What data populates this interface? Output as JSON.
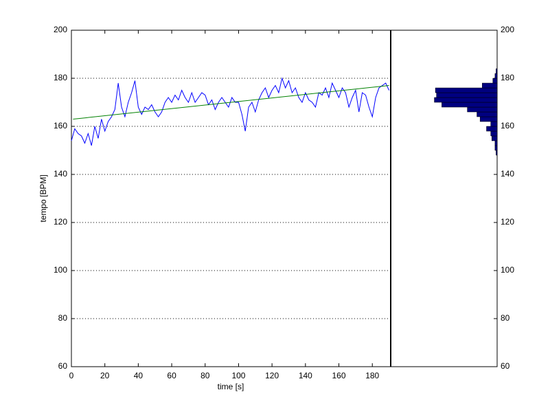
{
  "chart_data": [
    {
      "type": "line",
      "xlabel": "time [s]",
      "ylabel": "tempo [BPM]",
      "x": [
        0,
        2,
        4,
        6,
        8,
        10,
        12,
        14,
        16,
        18,
        20,
        22,
        24,
        26,
        28,
        30,
        32,
        34,
        36,
        38,
        40,
        42,
        44,
        46,
        48,
        50,
        52,
        54,
        56,
        58,
        60,
        62,
        64,
        66,
        68,
        70,
        72,
        74,
        76,
        78,
        80,
        82,
        84,
        86,
        88,
        90,
        92,
        94,
        96,
        98,
        100,
        102,
        104,
        106,
        108,
        110,
        112,
        114,
        116,
        118,
        120,
        122,
        124,
        126,
        128,
        130,
        132,
        134,
        136,
        138,
        140,
        142,
        144,
        146,
        148,
        150,
        152,
        154,
        156,
        158,
        160,
        162,
        164,
        166,
        168,
        170,
        172,
        174,
        176,
        178,
        180,
        182,
        184,
        186,
        188,
        190
      ],
      "series": [
        {
          "color": "#0000ff",
          "values": [
            154,
            159,
            157,
            156,
            153,
            157,
            152,
            160,
            155,
            163,
            158,
            162,
            164,
            167,
            178,
            168,
            164,
            170,
            174,
            179,
            168,
            165,
            168,
            167,
            169,
            166,
            164,
            166,
            170,
            172,
            170,
            173,
            171,
            175,
            172,
            170,
            174,
            170,
            172,
            174,
            173,
            169,
            171,
            167,
            170,
            172,
            170,
            168,
            172,
            170,
            170,
            165,
            158,
            168,
            170,
            166,
            171,
            174,
            176,
            172,
            175,
            177,
            174,
            180,
            176,
            179,
            174,
            176,
            172,
            170,
            174,
            171,
            170,
            168,
            174,
            173,
            176,
            172,
            178,
            175,
            172,
            176,
            174,
            168,
            172,
            175,
            166,
            174,
            173,
            168,
            164,
            172,
            176,
            177,
            178,
            175
          ]
        },
        {
          "color": "#008000",
          "x": [
            1,
            190
          ],
          "values": [
            163,
            177
          ]
        }
      ],
      "xlim": [
        0,
        191
      ],
      "ylim": [
        60,
        200
      ],
      "xticks": [
        0,
        20,
        40,
        60,
        80,
        100,
        120,
        140,
        160,
        180
      ],
      "yticks": [
        60,
        80,
        100,
        120,
        140,
        160,
        180,
        200
      ],
      "grid": true
    },
    {
      "type": "histogram",
      "orientation": "horizontal",
      "color": "#000080",
      "bins": [
        148,
        150,
        152,
        154,
        156,
        158,
        160,
        162,
        164,
        166,
        168,
        170,
        172,
        174,
        176,
        178,
        180,
        182,
        184
      ],
      "counts": [
        1,
        2,
        2,
        5,
        6,
        10,
        6,
        16,
        19,
        28,
        52,
        59,
        57,
        58,
        14,
        4,
        2,
        1
      ],
      "xlim": [
        0,
        100
      ],
      "ylim": [
        60,
        200
      ],
      "yticks": [
        60,
        80,
        100,
        120,
        140,
        160,
        180,
        200
      ],
      "yaxis_side": "right"
    }
  ]
}
